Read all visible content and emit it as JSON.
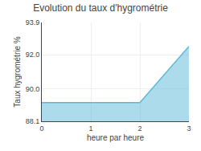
{
  "chart_data": {
    "type": "area",
    "title": "Evolution du taux d'hygrométrie",
    "x_label": "heure par heure",
    "y_label": "Taux hygrométrie %",
    "x": [
      0,
      2,
      3
    ],
    "values": [
      89.2,
      89.2,
      92.5
    ],
    "color": "#5ab8d8",
    "xlim": [
      0,
      3
    ],
    "xticks": [
      0,
      1,
      2,
      3
    ],
    "ylim": [
      88.1,
      93.9
    ],
    "yticks": [
      88.1,
      {
        "value": 90.0,
        "label": "90.0"
      },
      {
        "value": 92.0,
        "label": "92.0"
      },
      93.9
    ],
    "grid": true
  }
}
